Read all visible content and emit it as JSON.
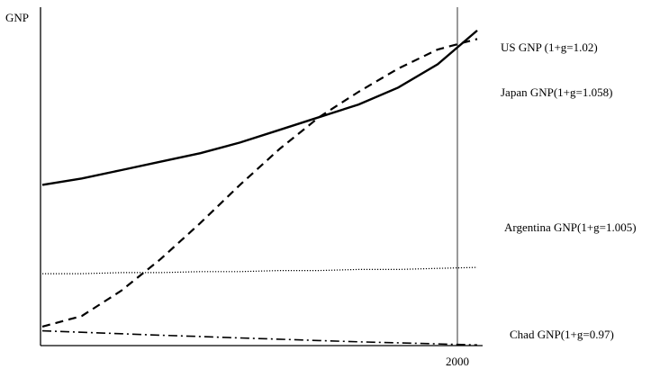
{
  "chart_data": {
    "type": "line",
    "ylabel": "GNP",
    "x_ticks": [
      "2000"
    ],
    "reference_line": {
      "label": "2000"
    },
    "series": [
      {
        "name": "US GNP (1+g=1.02)",
        "style": "solid",
        "values": [
          0.76,
          0.79,
          0.83,
          0.87,
          0.91,
          0.96,
          1.02,
          1.08,
          1.14,
          1.22,
          1.33,
          1.49
        ]
      },
      {
        "name": "Japan GNP(1+g=1.058)",
        "style": "dashed",
        "values": [
          0.09,
          0.14,
          0.26,
          0.41,
          0.58,
          0.76,
          0.93,
          1.08,
          1.2,
          1.31,
          1.4,
          1.45
        ]
      },
      {
        "name": "Argentina GNP(1+g=1.005)",
        "style": "dotted",
        "values": [
          0.34,
          0.34,
          0.345,
          0.345,
          0.35,
          0.35,
          0.355,
          0.355,
          0.36,
          0.36,
          0.365,
          0.37
        ]
      },
      {
        "name": "Chad GNP(1+g=0.97)",
        "style": "dash-dot",
        "values": [
          0.07,
          0.063,
          0.056,
          0.049,
          0.043,
          0.036,
          0.03,
          0.024,
          0.018,
          0.013,
          0.008,
          0.003
        ]
      }
    ],
    "colors": {
      "line": "#000000",
      "background": "#ffffff"
    },
    "grid": false
  }
}
